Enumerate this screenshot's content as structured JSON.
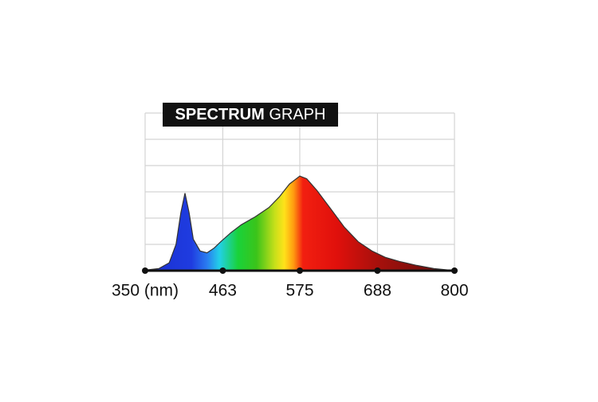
{
  "chart_data": {
    "type": "area",
    "title": {
      "bold": "SPECTRUM",
      "regular": "GRAPH"
    },
    "x": [
      350,
      370,
      385,
      395,
      402,
      408,
      414,
      420,
      430,
      440,
      450,
      460,
      475,
      490,
      510,
      530,
      545,
      560,
      575,
      585,
      600,
      620,
      640,
      660,
      680,
      700,
      720,
      745,
      770,
      800
    ],
    "values": [
      0.02,
      0.08,
      0.3,
      1.0,
      2.2,
      2.95,
      2.2,
      1.2,
      0.75,
      0.68,
      0.85,
      1.1,
      1.45,
      1.75,
      2.05,
      2.4,
      2.8,
      3.3,
      3.6,
      3.5,
      3.05,
      2.35,
      1.65,
      1.1,
      0.75,
      0.5,
      0.35,
      0.2,
      0.08,
      0
    ],
    "xlim": [
      350,
      800
    ],
    "xticks": [
      {
        "value": 350,
        "label": "350 (nm)"
      },
      463,
      575,
      688,
      800
    ],
    "ylim": [
      0,
      6
    ],
    "yticks": [
      0,
      1,
      2,
      3,
      4,
      5,
      6
    ],
    "grid": true
  }
}
